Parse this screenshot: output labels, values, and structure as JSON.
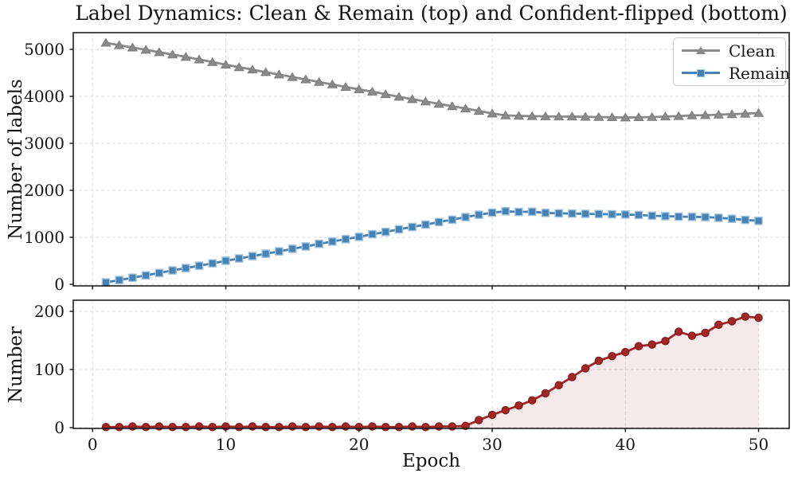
{
  "title": "Label Dynamics: Clean &amp; Remain (top) and Confident-flipped (bottom)",
  "colors": {
    "clean": "#8a8a8a",
    "remain": "#4682b4",
    "remain_marker_edge": "#9fc3e0",
    "flipped": "#a32626",
    "flipped_marker_edge": "#7d1717",
    "flipped_fill": "#a32626",
    "grid": "#dbdbdb",
    "spine": "#1f1f1f",
    "text": "#141414"
  },
  "chart_data": [
    {
      "type": "line",
      "ylabel": "Number of labels",
      "x": [
        1,
        2,
        3,
        4,
        5,
        6,
        7,
        8,
        9,
        10,
        11,
        12,
        13,
        14,
        15,
        16,
        17,
        18,
        19,
        20,
        21,
        22,
        23,
        24,
        25,
        26,
        27,
        28,
        29,
        30,
        31,
        32,
        33,
        34,
        35,
        36,
        37,
        38,
        39,
        40,
        41,
        42,
        43,
        44,
        45,
        46,
        47,
        48,
        49,
        50
      ],
      "series": [
        {
          "name": "Clean",
          "marker": "triangle",
          "color": "#8a8a8a",
          "values": [
            5140,
            5090,
            5040,
            4990,
            4940,
            4890,
            4840,
            4785,
            4730,
            4675,
            4620,
            4570,
            4515,
            4465,
            4410,
            4360,
            4305,
            4255,
            4200,
            4150,
            4100,
            4045,
            3990,
            3940,
            3890,
            3840,
            3790,
            3740,
            3690,
            3635,
            3595,
            3585,
            3580,
            3575,
            3570,
            3570,
            3565,
            3560,
            3555,
            3550,
            3555,
            3560,
            3570,
            3580,
            3595,
            3600,
            3610,
            3620,
            3630,
            3645
          ]
        },
        {
          "name": "Remain",
          "marker": "square",
          "color": "#4682b4",
          "values": [
            40,
            90,
            140,
            190,
            240,
            295,
            345,
            395,
            445,
            500,
            550,
            600,
            650,
            700,
            755,
            805,
            860,
            910,
            960,
            1010,
            1065,
            1115,
            1170,
            1220,
            1270,
            1325,
            1375,
            1430,
            1480,
            1525,
            1555,
            1540,
            1545,
            1520,
            1510,
            1505,
            1500,
            1495,
            1490,
            1485,
            1475,
            1460,
            1450,
            1440,
            1435,
            1430,
            1415,
            1395,
            1370,
            1350
          ]
        }
      ],
      "yticks": [
        0,
        1000,
        2000,
        3000,
        4000,
        5000
      ],
      "xticks": [
        0,
        10,
        20,
        30,
        40,
        50
      ],
      "ylim": [
        0,
        5350
      ],
      "grid": true,
      "legend": {
        "position": "upper right",
        "entries": [
          "Clean",
          "Remain"
        ]
      }
    },
    {
      "type": "area",
      "ylabel": "Number",
      "xlabel": "Epoch",
      "x": [
        1,
        2,
        3,
        4,
        5,
        6,
        7,
        8,
        9,
        10,
        11,
        12,
        13,
        14,
        15,
        16,
        17,
        18,
        19,
        20,
        21,
        22,
        23,
        24,
        25,
        26,
        27,
        28,
        29,
        30,
        31,
        32,
        33,
        34,
        35,
        36,
        37,
        38,
        39,
        40,
        41,
        42,
        43,
        44,
        45,
        46,
        47,
        48,
        49,
        50
      ],
      "series": [
        {
          "name": "Confident-flipped",
          "marker": "circle",
          "color": "#a32626",
          "fill_opacity": 0.1,
          "values": [
            1,
            1,
            2,
            1,
            2,
            1,
            1,
            2,
            1,
            2,
            1,
            2,
            1,
            1,
            2,
            1,
            2,
            1,
            2,
            1,
            2,
            1,
            1,
            2,
            1,
            2,
            2,
            3,
            13,
            22,
            30,
            38,
            47,
            59,
            73,
            87,
            102,
            115,
            123,
            130,
            140,
            143,
            149,
            165,
            158,
            163,
            177,
            183,
            191,
            189
          ]
        }
      ],
      "yticks": [
        0,
        100,
        200
      ],
      "xticks": [
        0,
        10,
        20,
        30,
        40,
        50
      ],
      "xtick_labels": [
        "0",
        "10",
        "20",
        "30",
        "40",
        "50"
      ],
      "ylim": [
        0,
        218
      ],
      "grid": true
    }
  ]
}
